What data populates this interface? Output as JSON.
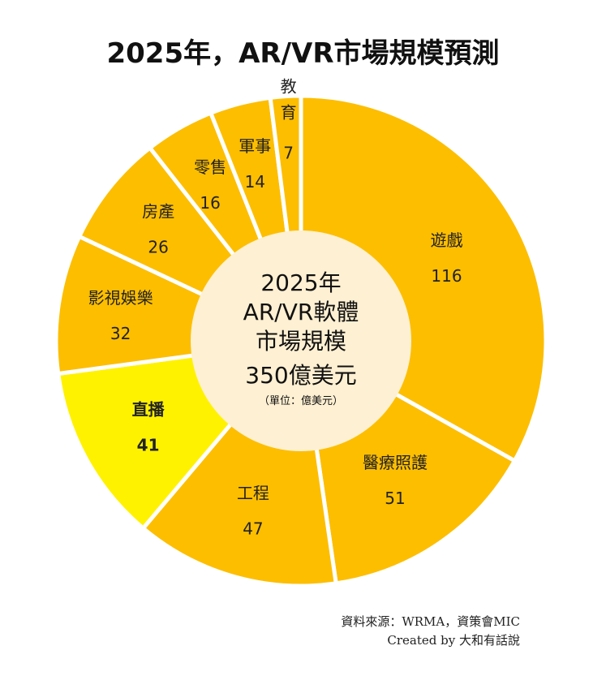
{
  "chart_data": {
    "type": "pie",
    "donut": true,
    "title": "2025年，AR/VR市場規模預測",
    "center_text": [
      "2025年",
      "AR/VR軟體",
      "市場規模",
      "350億美元"
    ],
    "center_unit": "（單位：億美元）",
    "categories": [
      "遊戲",
      "醫療照護",
      "工程",
      "直播",
      "影視娛樂",
      "房產",
      "零售",
      "軍事",
      "教育"
    ],
    "values": [
      116,
      51,
      47,
      41,
      32,
      26,
      16,
      14,
      7
    ],
    "highlight": "直播",
    "start": "top",
    "direction": "clockwise",
    "colors": {
      "slice": "#FDBE00",
      "highlight": "#FFF200",
      "center": "#FEF0D2",
      "separator": "#FFFFFF"
    }
  },
  "source": "資料來源：WRMA，資策會MIC",
  "credit": "Created by 大和有話說"
}
